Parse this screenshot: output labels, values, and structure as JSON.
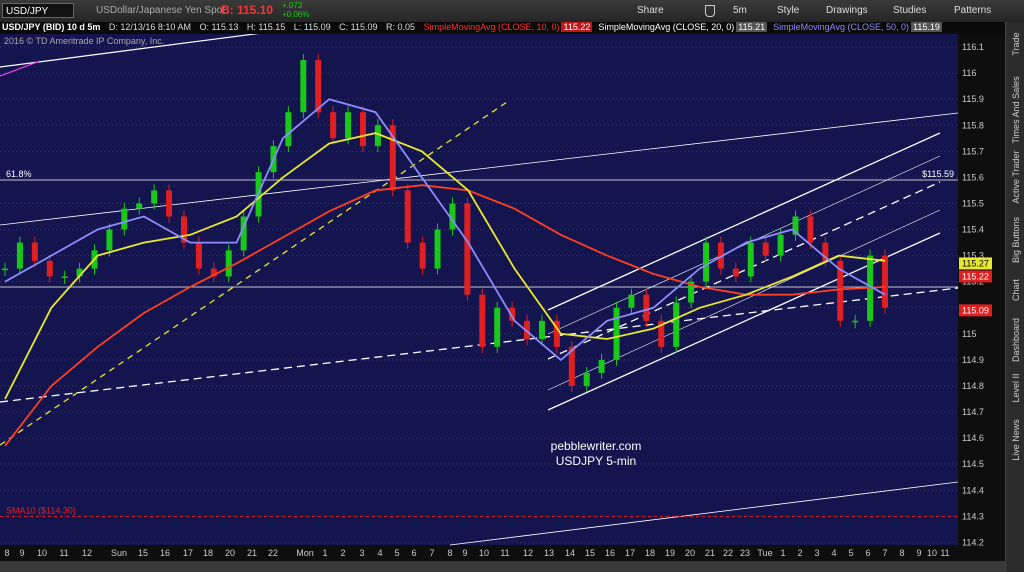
{
  "toolbar": {
    "symbol": "USD/JPY",
    "description": "USDollar/Japanese Yen Spot",
    "bid": "B: 115.10",
    "change": "+.073",
    "change_pct": "+0.06%",
    "buttons": [
      "Share",
      "5m",
      "Style",
      "Drawings",
      "Studies",
      "Patterns"
    ]
  },
  "info_bar": {
    "title": "USD/JPY (BID) 10 d 5m",
    "date": "D: 12/13/16 8:10 AM",
    "open": "O: 115.13",
    "high": "H: 115.15",
    "low": "L: 115.09",
    "close": "C: 115.09",
    "range": "R: 0.05",
    "studies": [
      {
        "name": "SimpleMovingAvg (CLOSE, 10, 0)",
        "value": "115.22",
        "color": "#ff3030"
      },
      {
        "name": "SimpleMovingAvg (CLOSE, 20, 0)",
        "value": "115.21",
        "color": "#ffffff"
      },
      {
        "name": "SimpleMovingAvg (CLOSE, 50, 0)",
        "value": "115.19",
        "color": "#8c8cff"
      }
    ]
  },
  "chart": {
    "copyright": "2016 © TD Ameritrade IP Company, Inc.",
    "watermark": [
      "pebblewriter.com",
      "USDJPY 5-min"
    ],
    "fib": {
      "value": 115.59,
      "label": "61.8%",
      "price": "$115.59"
    },
    "sma_line": {
      "value": 114.3,
      "label": "SMA10 ($114.30)"
    },
    "ylim": [
      114.19,
      116.15
    ],
    "yticks": [
      116.1,
      116,
      115.9,
      115.8,
      115.7,
      115.6,
      115.5,
      115.4,
      115.3,
      115.2,
      115.1,
      115,
      114.9,
      114.8,
      114.7,
      114.6,
      114.5,
      114.4,
      114.3,
      114.2
    ],
    "time_labels": [
      "8",
      "9",
      "10",
      "11",
      "12",
      "Sun",
      "15",
      "16",
      "17",
      "18",
      "20",
      "21",
      "22",
      "Mon",
      "1",
      "2",
      "3",
      "4",
      "5",
      "6",
      "7",
      "8",
      "9",
      "10",
      "11",
      "12",
      "13",
      "14",
      "15",
      "16",
      "17",
      "18",
      "19",
      "20",
      "21",
      "22",
      "23",
      "Tue",
      "1",
      "2",
      "3",
      "4",
      "5",
      "6",
      "7",
      "8",
      "9",
      "10",
      "11"
    ],
    "close": [
      115.25,
      115.35,
      115.28,
      115.22,
      115.22,
      115.25,
      115.32,
      115.4,
      115.48,
      115.5,
      115.55,
      115.45,
      115.35,
      115.25,
      115.22,
      115.32,
      115.45,
      115.62,
      115.72,
      115.85,
      116.05,
      115.85,
      115.75,
      115.85,
      115.72,
      115.8,
      115.55,
      115.35,
      115.25,
      115.4,
      115.5,
      115.15,
      114.95,
      115.1,
      115.05,
      114.98,
      115.05,
      114.95,
      114.8,
      114.85,
      114.9,
      115.1,
      115.15,
      115.05,
      114.95,
      115.12,
      115.2,
      115.35,
      115.25,
      115.22,
      115.35,
      115.3,
      115.38,
      115.45,
      115.35,
      115.28,
      115.05,
      115.05,
      115.3,
      115.1
    ],
    "up_color": "#19c819",
    "down_color": "#e02020",
    "ma_series": [
      {
        "color": "#ff4020",
        "values": [
          114.57,
          114.8,
          114.95,
          115.08,
          115.18,
          115.27,
          115.37,
          115.47,
          115.55,
          115.57,
          115.55,
          115.48,
          115.38,
          115.3,
          115.23,
          115.18,
          115.15,
          115.15,
          115.17,
          115.18
        ]
      },
      {
        "color": "#e8e830",
        "values": [
          114.75,
          115.1,
          115.3,
          115.35,
          115.38,
          115.45,
          115.6,
          115.73,
          115.77,
          115.7,
          115.55,
          115.25,
          115.0,
          114.98,
          115.02,
          115.1,
          115.15,
          115.22,
          115.3,
          115.28
        ]
      },
      {
        "color": "#8c8cff",
        "values": [
          115.2,
          115.3,
          115.4,
          115.45,
          115.35,
          115.35,
          115.75,
          115.9,
          115.85,
          115.6,
          115.35,
          115.05,
          114.9,
          115.05,
          115.1,
          115.25,
          115.35,
          115.4,
          115.25,
          115.15
        ]
      }
    ],
    "price_tags": [
      {
        "value": 115.27,
        "color": "#e8e830"
      },
      {
        "value": 115.22,
        "color": "#e02020"
      },
      {
        "value": 115.09,
        "color": "#e02020"
      }
    ]
  },
  "sidebar": [
    "Trade",
    "Times And Sales",
    "Active Trader",
    "Big Buttons",
    "Chart",
    "Dashboard",
    "Level II",
    "Live News"
  ]
}
